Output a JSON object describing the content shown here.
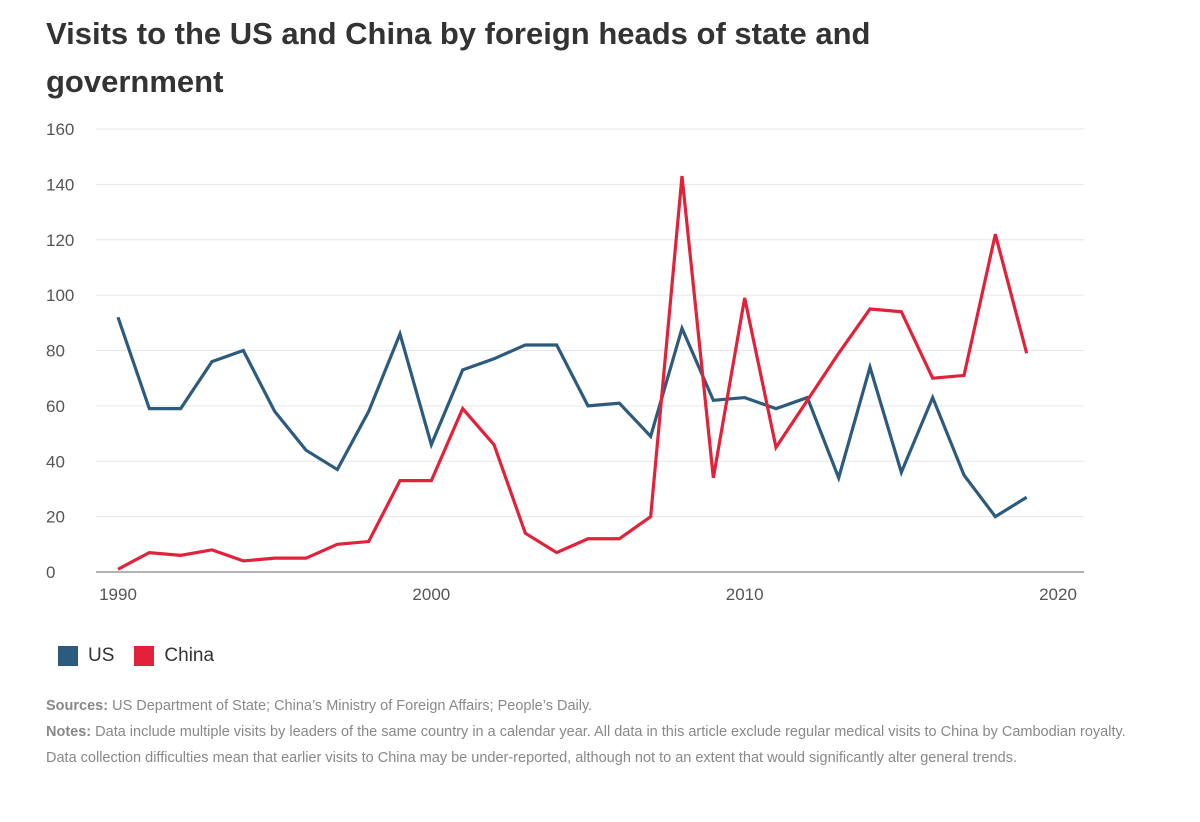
{
  "chart_data": {
    "type": "line",
    "title": "Visits to the US and China by foreign heads of state and government",
    "xlabel": "",
    "ylabel": "",
    "xlim": [
      1990,
      2020
    ],
    "ylim": [
      0,
      160
    ],
    "x_ticks": [
      1990,
      2000,
      2010,
      2020
    ],
    "y_ticks": [
      0,
      20,
      40,
      60,
      80,
      100,
      120,
      140,
      160
    ],
    "grid": "horizontal",
    "legend_position": "bottom-left",
    "x": [
      1990,
      1991,
      1992,
      1993,
      1994,
      1995,
      1996,
      1997,
      1998,
      1999,
      2000,
      2001,
      2002,
      2003,
      2004,
      2005,
      2006,
      2007,
      2008,
      2009,
      2010,
      2011,
      2012,
      2013,
      2014,
      2015,
      2016,
      2017,
      2018,
      2019
    ],
    "series": [
      {
        "name": "US",
        "color": "#2d5b7d",
        "values": [
          92,
          59,
          59,
          76,
          80,
          58,
          44,
          37,
          58,
          86,
          46,
          73,
          77,
          82,
          82,
          60,
          61,
          49,
          88,
          62,
          63,
          59,
          63,
          34,
          74,
          36,
          63,
          35,
          20,
          27
        ]
      },
      {
        "name": "China",
        "color": "#e2213a",
        "values": [
          1,
          7,
          6,
          8,
          4,
          5,
          5,
          10,
          11,
          33,
          33,
          59,
          46,
          14,
          7,
          12,
          12,
          20,
          143,
          34,
          99,
          45,
          62,
          79,
          95,
          94,
          70,
          71,
          122,
          79
        ]
      }
    ]
  },
  "footer": {
    "sources_label": "Sources:",
    "sources_text": " US Department of State; China’s Ministry of Foreign Affairs; People’s Daily.",
    "notes_label": "Notes:",
    "notes_text": " Data include multiple visits by leaders of the same country in a calendar year. All data in this article exclude regular medical visits to China by Cambodian royalty. Data collection difficulties mean that earlier visits to China may be under-reported, although not to an extent that would significantly alter general trends."
  }
}
